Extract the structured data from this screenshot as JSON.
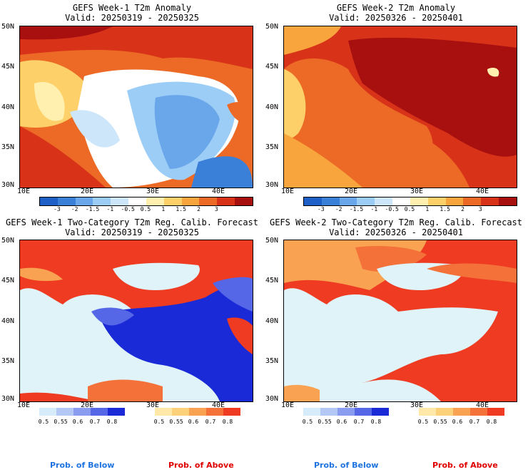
{
  "panels": [
    {
      "title": "GEFS Week-1 T2m Anomaly",
      "valid": "Valid: 20250319 - 20250325"
    },
    {
      "title": "GEFS Week-2 T2m Anomaly",
      "valid": "Valid: 20250326 - 20250401"
    },
    {
      "title": "GEFS Week-1 Two-Category T2m Reg. Calib. Forecast",
      "valid": "Valid: 20250319 - 20250325"
    },
    {
      "title": "GEFS Week-2 Two-Category T2m Reg. Calib. Forecast",
      "valid": "Valid: 20250326 - 20250401"
    }
  ],
  "lat_labels": [
    "50N",
    "45N",
    "40N",
    "35N",
    "30N"
  ],
  "lon_labels": [
    "10E",
    "20E",
    "30E",
    "40E"
  ],
  "anomaly_ticks": [
    "-3",
    "-2",
    "-1.5",
    "-1",
    "-0.5",
    "0.5",
    "1",
    "1.5",
    "2",
    "3"
  ],
  "prob_ticks": [
    "0.5",
    "0.55",
    "0.6",
    "0.7",
    "0.8"
  ],
  "legend": {
    "below": "Prob. of Below",
    "above": "Prob. of Above"
  },
  "colors": {
    "anomaly_scale": [
      "#1f5fc8",
      "#3a7fd8",
      "#6aa6ea",
      "#9ccdf6",
      "#cde6fa",
      "#ffffff",
      "#fff0b0",
      "#fdd06a",
      "#f7a53c",
      "#ec6a26",
      "#d83319",
      "#a81010"
    ],
    "below_scale": [
      "#d6ecfa",
      "#b4c8f5",
      "#8a9cef",
      "#5566e6",
      "#1a2ad6"
    ],
    "above_scale": [
      "#ffe8a8",
      "#fdd07a",
      "#f9a252",
      "#f4713a",
      "#ee3b22"
    ],
    "ocean_prob": "#dff3f8"
  }
}
